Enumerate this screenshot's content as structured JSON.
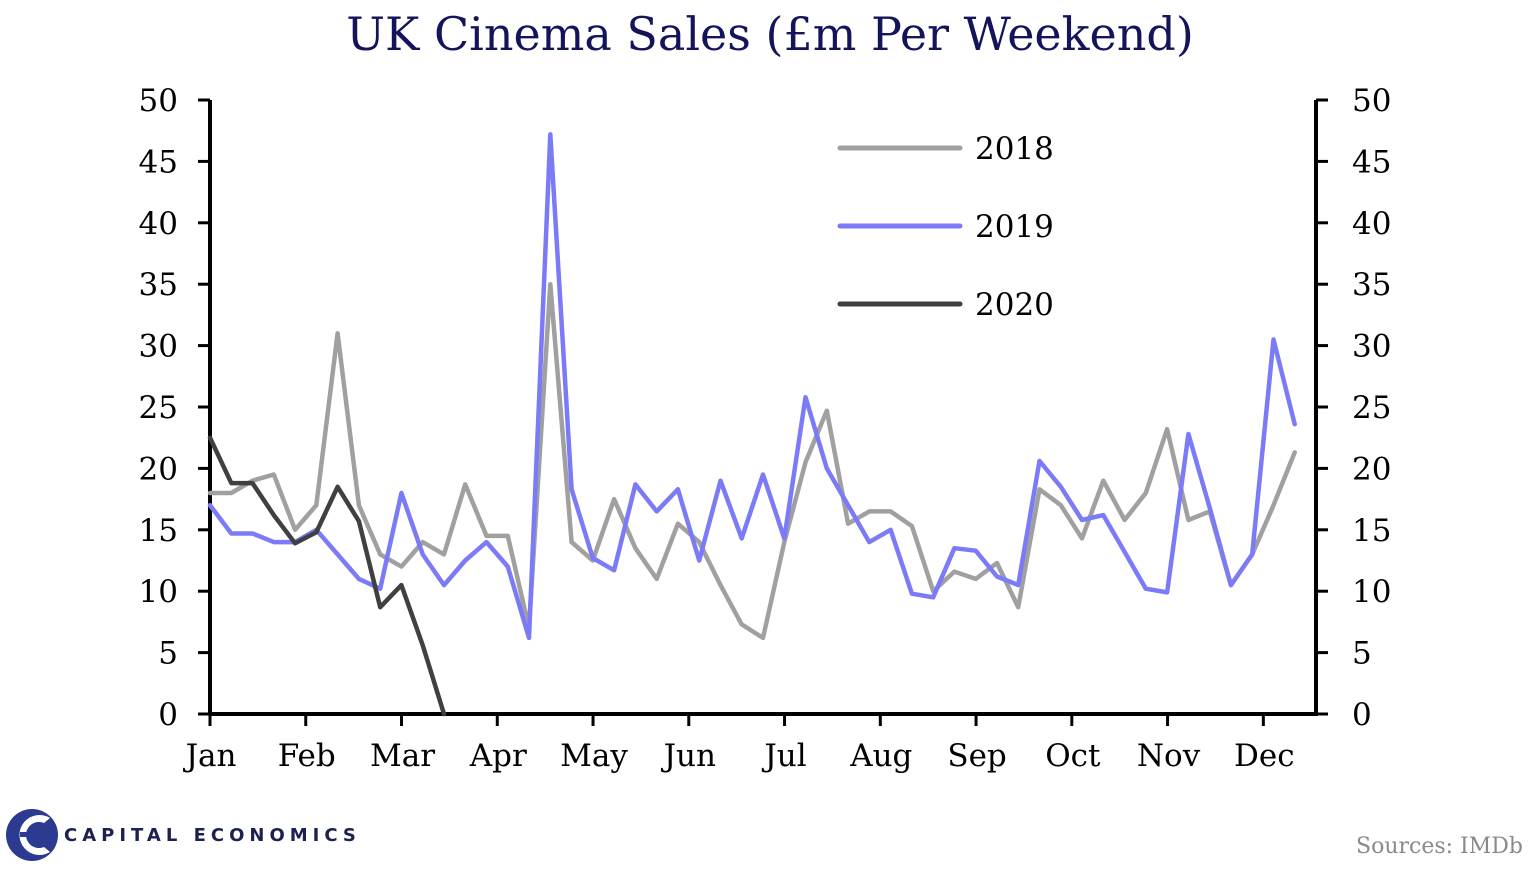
{
  "colors": {
    "s2018": "#a0a0a0",
    "s2019": "#7b7bf7",
    "s2020": "#404040",
    "axis": "#000000",
    "title": "#14145a",
    "brand": "#1c2250"
  },
  "footer": {
    "brand": "CAPITAL ECONOMICS",
    "source": "Sources: IMDb"
  },
  "chart_data": {
    "type": "line",
    "title": "UK Cinema Sales (£m Per Weekend)",
    "xlabel": "",
    "ylabel": "",
    "ylim": [
      0,
      50
    ],
    "yticks": [
      0,
      5,
      10,
      15,
      20,
      25,
      30,
      35,
      40,
      45,
      50
    ],
    "week_range": [
      1,
      53
    ],
    "months": [
      "Jan",
      "Feb",
      "Mar",
      "Apr",
      "May",
      "Jun",
      "Jul",
      "Aug",
      "Sep",
      "Oct",
      "Nov",
      "Dec"
    ],
    "legend": [
      "2018",
      "2019",
      "2020"
    ],
    "series": [
      {
        "name": "2018",
        "values": [
          18,
          18,
          19,
          19.5,
          15,
          17,
          31,
          17,
          13,
          12,
          14,
          13,
          18.7,
          14.5,
          14.5,
          7,
          35,
          14,
          12.5,
          17.5,
          13.5,
          11,
          15.5,
          14,
          10.5,
          7.3,
          6.2,
          14,
          20.5,
          24.7,
          15.5,
          16.5,
          16.5,
          15.3,
          10,
          11.6,
          11,
          12.3,
          8.7,
          18.3,
          17,
          14.3,
          19,
          15.8,
          18,
          23.2,
          15.8,
          16.5,
          10.5,
          13,
          17,
          21.3
        ]
      },
      {
        "name": "2019",
        "values": [
          17,
          14.7,
          14.7,
          14,
          14,
          15,
          13,
          11,
          10.2,
          18,
          13,
          10.5,
          12.5,
          14,
          12,
          6.2,
          47.2,
          18.3,
          12.7,
          11.7,
          18.7,
          16.5,
          18.3,
          12.5,
          19,
          14.3,
          19.5,
          14.3,
          25.8,
          20,
          17,
          14,
          15,
          9.8,
          9.5,
          13.5,
          13.3,
          11.2,
          10.5,
          20.6,
          18.5,
          15.8,
          16.2,
          13.2,
          10.2,
          9.9,
          22.8,
          16.8,
          10.5,
          13,
          30.5,
          23.6
        ]
      },
      {
        "name": "2020",
        "values": [
          22.5,
          18.8,
          18.8,
          16.2,
          13.9,
          14.8,
          18.5,
          15.7,
          8.7,
          10.5,
          5.6,
          0
        ]
      }
    ]
  }
}
